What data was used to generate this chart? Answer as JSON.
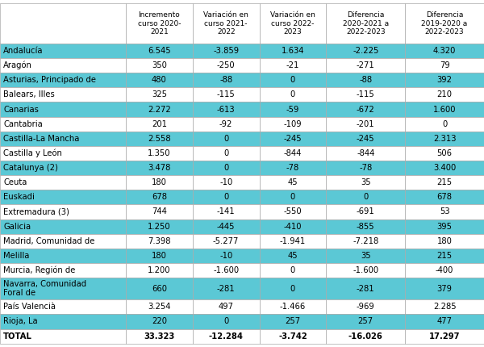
{
  "col_headers": [
    "",
    "Incremento\ncurso 2020-\n2021",
    "Variación en\ncurso 2021-\n2022",
    "Variación en\ncurso 2022-\n2023",
    "Diferencia\n2020-2021 a\n2022-2023",
    "Diferencia\n2019-2020 a\n2022-2023"
  ],
  "rows": [
    [
      "Andalucía",
      "6.545",
      "-3.859",
      "1.634",
      "-2.225",
      "4.320"
    ],
    [
      "Aragón",
      "350",
      "-250",
      "-21",
      "-271",
      "79"
    ],
    [
      "Asturias, Principado de",
      "480",
      "-88",
      "0",
      "-88",
      "392"
    ],
    [
      "Balears, Illes",
      "325",
      "-115",
      "0",
      "-115",
      "210"
    ],
    [
      "Canarias",
      "2.272",
      "-613",
      "-59",
      "-672",
      "1.600"
    ],
    [
      "Cantabria",
      "201",
      "-92",
      "-109",
      "-201",
      "0"
    ],
    [
      "Castilla-La Mancha",
      "2.558",
      "0",
      "-245",
      "-245",
      "2.313"
    ],
    [
      "Castilla y León",
      "1.350",
      "0",
      "-844",
      "-844",
      "506"
    ],
    [
      "Catalunya (2)",
      "3.478",
      "0",
      "-78",
      "-78",
      "3.400"
    ],
    [
      "Ceuta",
      "180",
      "-10",
      "45",
      "35",
      "215"
    ],
    [
      "Euskadi",
      "678",
      "0",
      "0",
      "0",
      "678"
    ],
    [
      "Extremadura (3)",
      "744",
      "-141",
      "-550",
      "-691",
      "53"
    ],
    [
      "Galicia",
      "1.250",
      "-445",
      "-410",
      "-855",
      "395"
    ],
    [
      "Madrid, Comunidad de",
      "7.398",
      "-5.277",
      "-1.941",
      "-7.218",
      "180"
    ],
    [
      "Melilla",
      "180",
      "-10",
      "45",
      "35",
      "215"
    ],
    [
      "Murcia, Región de",
      "1.200",
      "-1.600",
      "0",
      "-1.600",
      "-400"
    ],
    [
      "Navarra, Comunidad\nForal de",
      "660",
      "-281",
      "0",
      "-281",
      "379"
    ],
    [
      "País Valencià",
      "3.254",
      "497",
      "-1.466",
      "-969",
      "2.285"
    ],
    [
      "Rioja, La",
      "220",
      "0",
      "257",
      "257",
      "477"
    ],
    [
      "TOTAL",
      "33.323",
      "-12.284",
      "-3.742",
      "-16.026",
      "17.297"
    ]
  ],
  "highlight_color": "#5bc8d5",
  "white_color": "#ffffff",
  "text_color": "#000000",
  "figsize": [
    6.0,
    4.3
  ],
  "dpi": 100
}
